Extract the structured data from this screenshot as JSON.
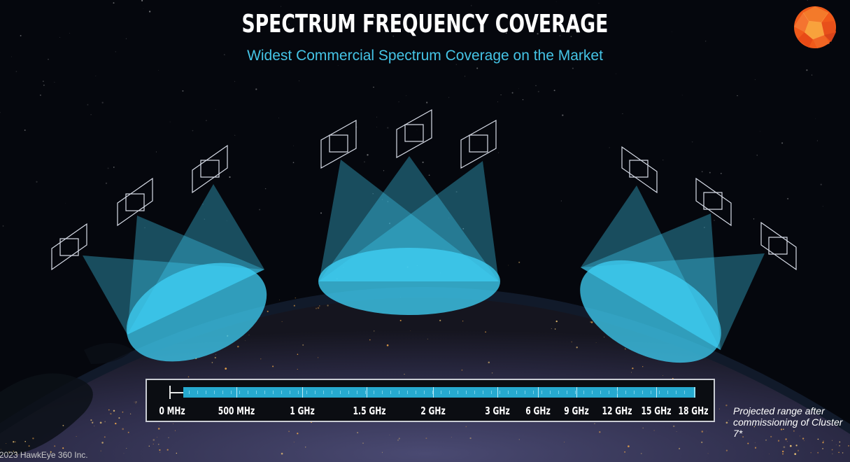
{
  "header": {
    "title": "SPECTRUM FREQUENCY COVERAGE",
    "subtitle": "Widest Commercial Spectrum Coverage on the Market"
  },
  "logo": {
    "icon": "geodesic-sphere-logo",
    "colors": [
      "#f05a1a",
      "#f7a63a"
    ]
  },
  "satellite_clusters": [
    {
      "name": "left-cluster",
      "satellites": 3
    },
    {
      "name": "center-cluster",
      "satellites": 3
    },
    {
      "name": "right-cluster",
      "satellites": 3
    }
  ],
  "spectrum": {
    "ticks": [
      "0 MHz",
      "500 MHz",
      "1 GHz",
      "1.5 GHz",
      "2 GHz",
      "3 GHz",
      "6 GHz",
      "9 GHz",
      "12 GHz",
      "15 GHz",
      "18 GHz"
    ],
    "bar_color": "#26a9cf"
  },
  "note": "Projected range after commissioning of Cluster 7*",
  "copyright": "©2023 HawkEye 360 Inc.",
  "colors": {
    "accent": "#45c4e6",
    "beam": "#3fd0f5",
    "background": "#05070d"
  }
}
